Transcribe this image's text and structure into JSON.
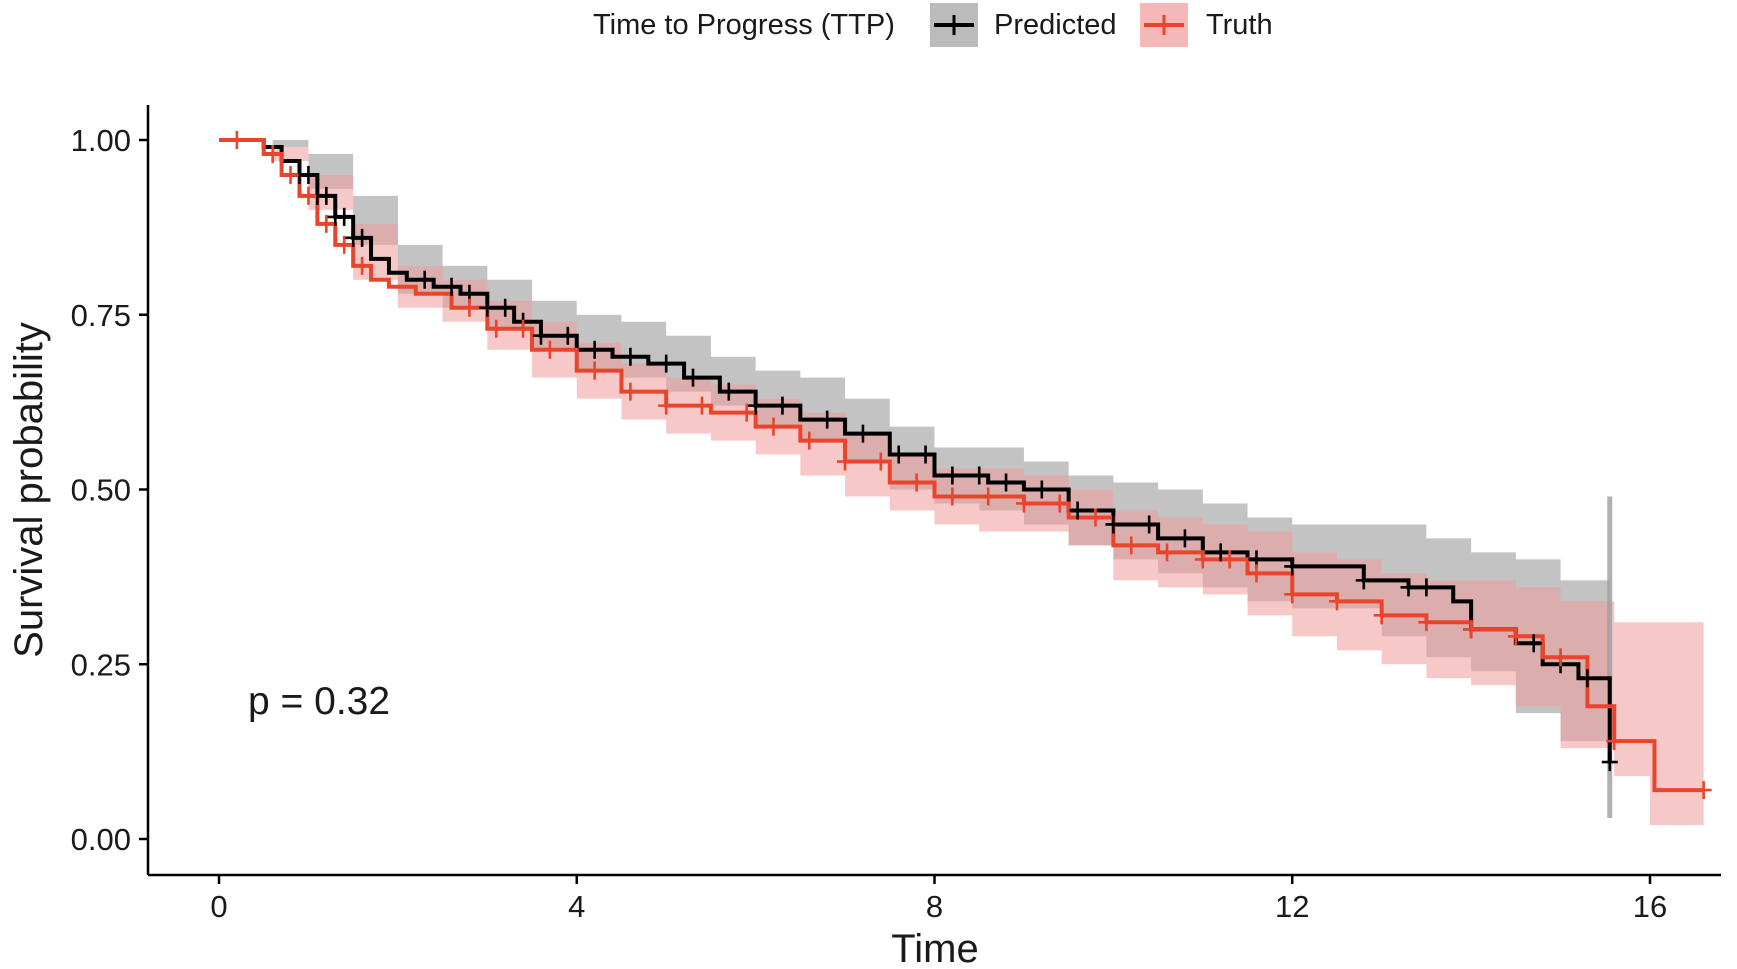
{
  "chart_data": {
    "type": "line",
    "subtype": "kaplan-meier survival curve with confidence bands and censor marks",
    "title": "",
    "legend": {
      "title": "Time to Progress (TTP)",
      "position": "top",
      "entries": [
        "Predicted",
        "Truth"
      ]
    },
    "xlabel": "Time",
    "ylabel": "Survival probability",
    "xlim": [
      -0.3,
      16.9
    ],
    "ylim": [
      -0.05,
      1.05
    ],
    "xticks": [
      0,
      4,
      8,
      12,
      16
    ],
    "xtick_labels": [
      "0",
      "4",
      "8",
      "12",
      "16"
    ],
    "yticks": [
      0,
      0.25,
      0.5,
      0.75,
      1.0
    ],
    "ytick_labels": [
      "0.00",
      "0.25",
      "0.50",
      "0.75",
      "1.00"
    ],
    "grid": false,
    "annotation": "p = 0.32",
    "series": [
      {
        "name": "Predicted",
        "color": "#000000",
        "band_color": "#9e9e9e",
        "steps": [
          [
            0,
            1.0
          ],
          [
            0.3,
            1.0
          ],
          [
            0.5,
            0.99
          ],
          [
            0.7,
            0.97
          ],
          [
            0.9,
            0.95
          ],
          [
            1.1,
            0.92
          ],
          [
            1.3,
            0.89
          ],
          [
            1.5,
            0.86
          ],
          [
            1.7,
            0.83
          ],
          [
            1.9,
            0.81
          ],
          [
            2.1,
            0.8
          ],
          [
            2.4,
            0.79
          ],
          [
            2.7,
            0.78
          ],
          [
            3.0,
            0.76
          ],
          [
            3.3,
            0.74
          ],
          [
            3.6,
            0.72
          ],
          [
            4.0,
            0.7
          ],
          [
            4.4,
            0.69
          ],
          [
            4.8,
            0.68
          ],
          [
            5.2,
            0.66
          ],
          [
            5.6,
            0.64
          ],
          [
            6.0,
            0.62
          ],
          [
            6.5,
            0.6
          ],
          [
            7.0,
            0.58
          ],
          [
            7.5,
            0.55
          ],
          [
            8.0,
            0.52
          ],
          [
            8.6,
            0.51
          ],
          [
            9.0,
            0.5
          ],
          [
            9.5,
            0.47
          ],
          [
            10.0,
            0.45
          ],
          [
            10.5,
            0.43
          ],
          [
            11.0,
            0.41
          ],
          [
            11.5,
            0.4
          ],
          [
            12.0,
            0.39
          ],
          [
            12.8,
            0.37
          ],
          [
            13.3,
            0.36
          ],
          [
            13.8,
            0.34
          ],
          [
            14.0,
            0.3
          ],
          [
            14.5,
            0.28
          ],
          [
            14.8,
            0.25
          ],
          [
            15.2,
            0.23
          ],
          [
            15.55,
            0.11
          ]
        ],
        "band_upper": [
          [
            0,
            1.0
          ],
          [
            0.6,
            1.0
          ],
          [
            1.0,
            0.98
          ],
          [
            1.5,
            0.92
          ],
          [
            2.0,
            0.85
          ],
          [
            2.5,
            0.82
          ],
          [
            3.0,
            0.8
          ],
          [
            3.5,
            0.77
          ],
          [
            4.0,
            0.75
          ],
          [
            4.5,
            0.74
          ],
          [
            5.0,
            0.72
          ],
          [
            5.5,
            0.69
          ],
          [
            6.0,
            0.67
          ],
          [
            6.5,
            0.66
          ],
          [
            7.0,
            0.63
          ],
          [
            7.5,
            0.59
          ],
          [
            8.0,
            0.56
          ],
          [
            8.5,
            0.56
          ],
          [
            9.0,
            0.54
          ],
          [
            9.5,
            0.52
          ],
          [
            10.0,
            0.51
          ],
          [
            10.5,
            0.5
          ],
          [
            11.0,
            0.48
          ],
          [
            11.5,
            0.46
          ],
          [
            12.0,
            0.45
          ],
          [
            13.0,
            0.45
          ],
          [
            13.5,
            0.43
          ],
          [
            14.0,
            0.41
          ],
          [
            14.5,
            0.4
          ],
          [
            15.0,
            0.37
          ],
          [
            15.55,
            0.37
          ]
        ],
        "band_lower": [
          [
            0,
            1.0
          ],
          [
            0.6,
            0.99
          ],
          [
            1.0,
            0.93
          ],
          [
            1.5,
            0.85
          ],
          [
            2.0,
            0.78
          ],
          [
            2.5,
            0.76
          ],
          [
            3.0,
            0.73
          ],
          [
            3.5,
            0.7
          ],
          [
            4.0,
            0.67
          ],
          [
            4.5,
            0.66
          ],
          [
            5.0,
            0.64
          ],
          [
            5.5,
            0.62
          ],
          [
            6.0,
            0.59
          ],
          [
            6.5,
            0.57
          ],
          [
            7.0,
            0.54
          ],
          [
            7.5,
            0.5
          ],
          [
            8.0,
            0.48
          ],
          [
            8.5,
            0.47
          ],
          [
            9.0,
            0.45
          ],
          [
            9.5,
            0.42
          ],
          [
            10.0,
            0.4
          ],
          [
            10.5,
            0.38
          ],
          [
            11.0,
            0.36
          ],
          [
            11.5,
            0.34
          ],
          [
            12.0,
            0.33
          ],
          [
            13.0,
            0.29
          ],
          [
            13.5,
            0.26
          ],
          [
            14.0,
            0.24
          ],
          [
            14.5,
            0.18
          ],
          [
            15.0,
            0.14
          ],
          [
            15.55,
            0.03
          ]
        ],
        "censor_times": [
          0.9,
          1.0,
          1.1,
          1.2,
          1.3,
          1.4,
          1.5,
          1.6,
          2.3,
          2.6,
          2.8,
          3.0,
          3.2,
          3.4,
          3.6,
          3.9,
          4.2,
          4.6,
          5.0,
          5.3,
          5.7,
          6.0,
          6.3,
          6.8,
          7.2,
          7.6,
          7.9,
          8.2,
          8.5,
          8.8,
          9.2,
          9.6,
          10.0,
          10.4,
          10.8,
          11.2,
          11.6,
          12.0,
          12.8,
          13.3,
          13.5,
          14.0,
          14.7,
          15.0,
          15.3,
          15.55
        ]
      },
      {
        "name": "Truth",
        "color": "#e8452c",
        "band_color": "#f19a9a",
        "steps": [
          [
            0,
            1.0
          ],
          [
            0.3,
            1.0
          ],
          [
            0.5,
            0.98
          ],
          [
            0.7,
            0.95
          ],
          [
            0.9,
            0.92
          ],
          [
            1.1,
            0.88
          ],
          [
            1.3,
            0.85
          ],
          [
            1.5,
            0.82
          ],
          [
            1.7,
            0.8
          ],
          [
            1.9,
            0.79
          ],
          [
            2.2,
            0.78
          ],
          [
            2.6,
            0.76
          ],
          [
            3.0,
            0.73
          ],
          [
            3.5,
            0.7
          ],
          [
            4.0,
            0.67
          ],
          [
            4.5,
            0.64
          ],
          [
            5.0,
            0.62
          ],
          [
            5.5,
            0.61
          ],
          [
            6.0,
            0.59
          ],
          [
            6.5,
            0.57
          ],
          [
            7.0,
            0.54
          ],
          [
            7.5,
            0.51
          ],
          [
            8.0,
            0.49
          ],
          [
            8.5,
            0.49
          ],
          [
            9.0,
            0.48
          ],
          [
            9.5,
            0.46
          ],
          [
            10.0,
            0.42
          ],
          [
            10.5,
            0.41
          ],
          [
            11.0,
            0.4
          ],
          [
            11.5,
            0.38
          ],
          [
            12.0,
            0.35
          ],
          [
            12.5,
            0.34
          ],
          [
            13.0,
            0.32
          ],
          [
            13.5,
            0.31
          ],
          [
            14.0,
            0.3
          ],
          [
            14.5,
            0.29
          ],
          [
            14.8,
            0.26
          ],
          [
            15.3,
            0.19
          ],
          [
            15.6,
            0.14
          ],
          [
            16.05,
            0.07
          ],
          [
            16.6,
            0.07
          ]
        ],
        "band_upper": [
          [
            0,
            1.0
          ],
          [
            0.6,
            0.99
          ],
          [
            1.0,
            0.95
          ],
          [
            1.5,
            0.88
          ],
          [
            2.0,
            0.82
          ],
          [
            2.5,
            0.8
          ],
          [
            3.0,
            0.77
          ],
          [
            3.5,
            0.74
          ],
          [
            4.0,
            0.71
          ],
          [
            4.5,
            0.68
          ],
          [
            5.0,
            0.66
          ],
          [
            5.5,
            0.65
          ],
          [
            6.0,
            0.63
          ],
          [
            6.5,
            0.61
          ],
          [
            7.0,
            0.58
          ],
          [
            7.5,
            0.55
          ],
          [
            8.0,
            0.53
          ],
          [
            8.5,
            0.53
          ],
          [
            9.0,
            0.52
          ],
          [
            9.5,
            0.5
          ],
          [
            10.0,
            0.47
          ],
          [
            10.5,
            0.46
          ],
          [
            11.0,
            0.45
          ],
          [
            11.5,
            0.44
          ],
          [
            12.0,
            0.41
          ],
          [
            12.5,
            0.4
          ],
          [
            13.0,
            0.38
          ],
          [
            13.5,
            0.37
          ],
          [
            14.0,
            0.37
          ],
          [
            14.5,
            0.36
          ],
          [
            15.0,
            0.34
          ],
          [
            15.6,
            0.31
          ],
          [
            16.0,
            0.31
          ],
          [
            16.6,
            0.35
          ]
        ],
        "band_lower": [
          [
            0,
            1.0
          ],
          [
            0.6,
            0.97
          ],
          [
            1.0,
            0.9
          ],
          [
            1.5,
            0.8
          ],
          [
            2.0,
            0.76
          ],
          [
            2.5,
            0.74
          ],
          [
            3.0,
            0.7
          ],
          [
            3.5,
            0.66
          ],
          [
            4.0,
            0.63
          ],
          [
            4.5,
            0.6
          ],
          [
            5.0,
            0.58
          ],
          [
            5.5,
            0.57
          ],
          [
            6.0,
            0.55
          ],
          [
            6.5,
            0.52
          ],
          [
            7.0,
            0.49
          ],
          [
            7.5,
            0.47
          ],
          [
            8.0,
            0.45
          ],
          [
            8.5,
            0.44
          ],
          [
            9.0,
            0.44
          ],
          [
            9.5,
            0.42
          ],
          [
            10.0,
            0.37
          ],
          [
            10.5,
            0.36
          ],
          [
            11.0,
            0.35
          ],
          [
            11.5,
            0.32
          ],
          [
            12.0,
            0.29
          ],
          [
            12.5,
            0.27
          ],
          [
            13.0,
            0.25
          ],
          [
            13.5,
            0.23
          ],
          [
            14.0,
            0.22
          ],
          [
            14.5,
            0.19
          ],
          [
            15.0,
            0.13
          ],
          [
            15.6,
            0.09
          ],
          [
            16.0,
            0.02
          ],
          [
            16.6,
            0.02
          ]
        ],
        "censor_times": [
          0.2,
          0.6,
          0.8,
          1.0,
          1.2,
          1.4,
          1.6,
          2.8,
          3.1,
          3.4,
          3.7,
          4.2,
          4.6,
          5.0,
          5.4,
          5.9,
          6.2,
          6.6,
          7.0,
          7.4,
          7.8,
          8.2,
          8.6,
          9.0,
          9.4,
          9.8,
          10.2,
          10.6,
          11.0,
          11.3,
          11.6,
          12.0,
          12.5,
          13.0,
          13.5,
          14.0,
          14.5,
          15.0,
          15.6,
          16.6
        ]
      }
    ]
  }
}
